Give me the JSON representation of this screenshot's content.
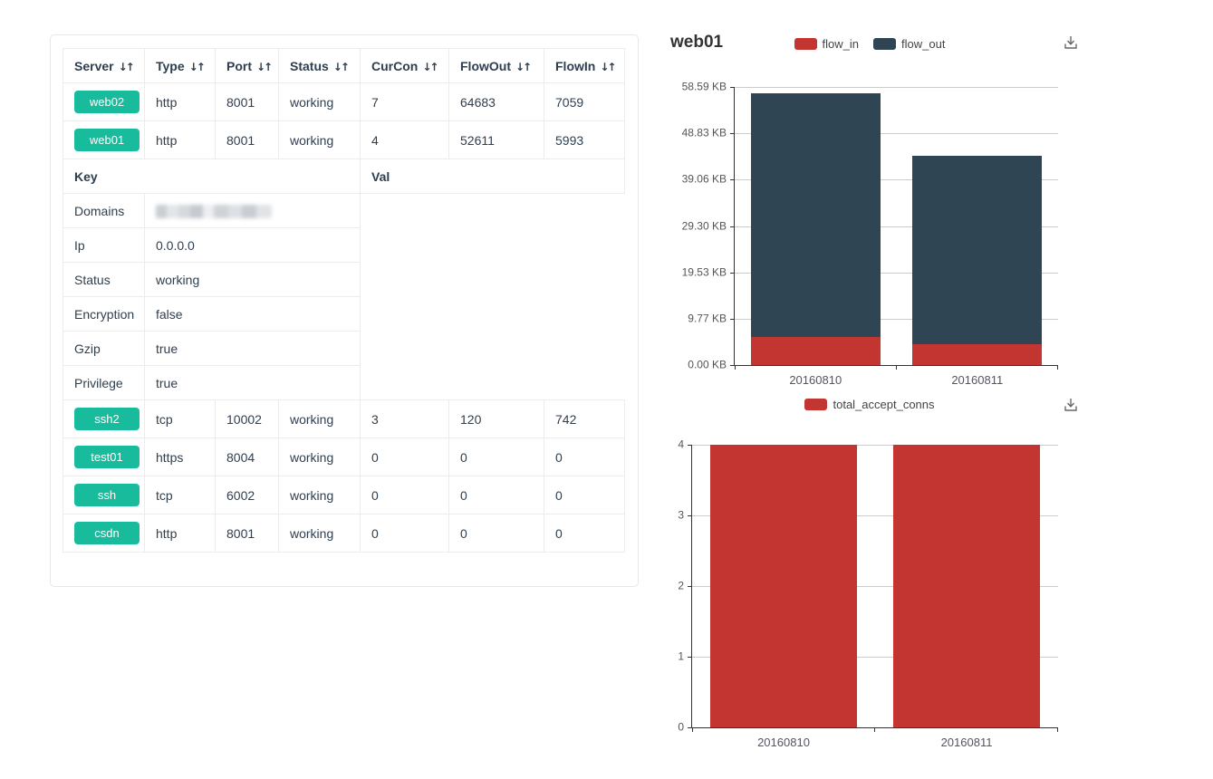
{
  "colors": {
    "accent_green": "#18bc9c",
    "series_red": "#c23531",
    "series_dark": "#2f4554",
    "axis_line": "#333333",
    "gridline": "#cccccc"
  },
  "icons": {
    "sort": "↓↑",
    "download": "save-as-image-download-icon"
  },
  "table": {
    "columns": [
      "Server",
      "Type",
      "Port",
      "Status",
      "CurCon",
      "FlowOut",
      "FlowIn"
    ],
    "rows_top": [
      {
        "server": "web02",
        "type": "http",
        "port": "8001",
        "status": "working",
        "curcon": "7",
        "flowout": "64683",
        "flowin": "7059"
      },
      {
        "server": "web01",
        "type": "http",
        "port": "8001",
        "status": "working",
        "curcon": "4",
        "flowout": "52611",
        "flowin": "5993"
      }
    ],
    "detail": {
      "key_header": "Key",
      "val_header": "Val",
      "rows": [
        {
          "key": "Domains",
          "val": "",
          "redacted": true
        },
        {
          "key": "Ip",
          "val": "0.0.0.0"
        },
        {
          "key": "Status",
          "val": "working"
        },
        {
          "key": "Encryption",
          "val": "false"
        },
        {
          "key": "Gzip",
          "val": "true"
        },
        {
          "key": "Privilege",
          "val": "true"
        }
      ]
    },
    "rows_bottom": [
      {
        "server": "ssh2",
        "type": "tcp",
        "port": "10002",
        "status": "working",
        "curcon": "3",
        "flowout": "120",
        "flowin": "742"
      },
      {
        "server": "test01",
        "type": "https",
        "port": "8004",
        "status": "working",
        "curcon": "0",
        "flowout": "0",
        "flowin": "0"
      },
      {
        "server": "ssh",
        "type": "tcp",
        "port": "6002",
        "status": "working",
        "curcon": "0",
        "flowout": "0",
        "flowin": "0"
      },
      {
        "server": "csdn",
        "type": "http",
        "port": "8001",
        "status": "working",
        "curcon": "0",
        "flowout": "0",
        "flowin": "0"
      }
    ]
  },
  "chart_data": [
    {
      "type": "bar",
      "subtype": "stacked",
      "title": "web01",
      "categories": [
        "20160810",
        "20160811"
      ],
      "series": [
        {
          "name": "flow_in",
          "color": "#c23531",
          "values": [
            5.85,
            4.4
          ]
        },
        {
          "name": "flow_out",
          "color": "#2f4554",
          "values": [
            51.38,
            39.7
          ]
        }
      ],
      "legend": [
        {
          "name": "flow_in",
          "color": "#c23531"
        },
        {
          "name": "flow_out",
          "color": "#2f4554"
        }
      ],
      "unit": "KB",
      "ylim": [
        0,
        58.59
      ],
      "y_ticks": [
        "0.00 KB",
        "9.77 KB",
        "19.53 KB",
        "29.30 KB",
        "39.06 KB",
        "48.83 KB",
        "58.59 KB"
      ],
      "grid": true,
      "legend_position": "top-center"
    },
    {
      "type": "bar",
      "subtype": "plain",
      "title": "",
      "categories": [
        "20160810",
        "20160811"
      ],
      "series": [
        {
          "name": "total_accept_conns",
          "color": "#c23531",
          "values": [
            4,
            4
          ]
        }
      ],
      "legend": [
        {
          "name": "total_accept_conns",
          "color": "#c23531"
        }
      ],
      "unit": "",
      "ylim": [
        0,
        4
      ],
      "y_ticks": [
        "0",
        "1",
        "2",
        "3",
        "4"
      ],
      "grid": true,
      "legend_position": "top-center"
    }
  ]
}
